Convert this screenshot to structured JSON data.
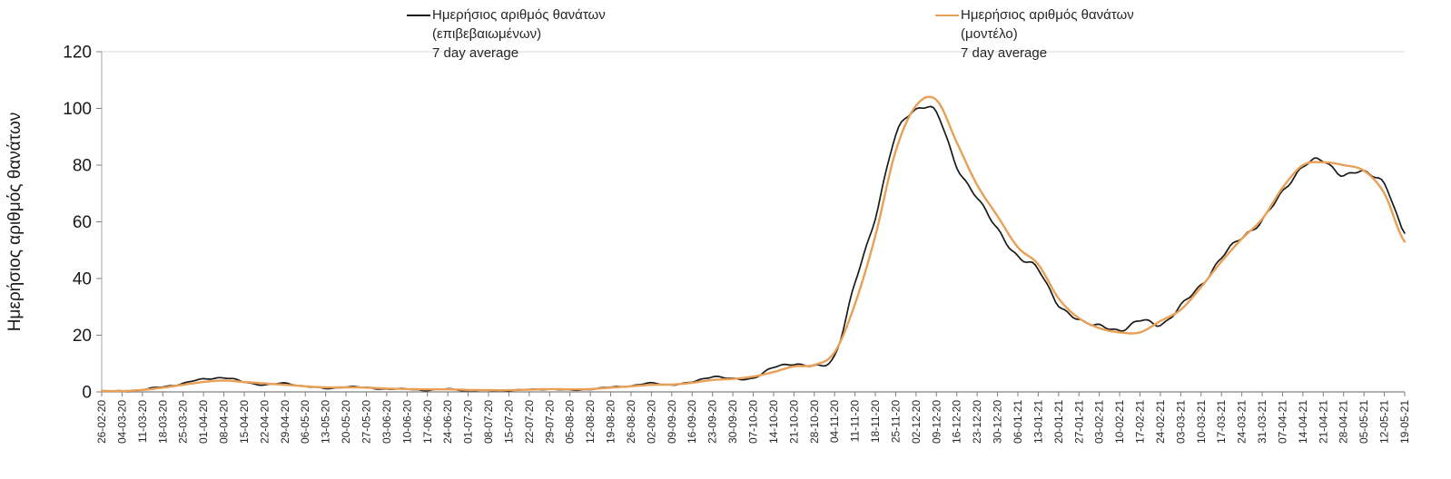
{
  "page": {
    "background": "#ffffff"
  },
  "legend": {
    "items": [
      {
        "lines": [
          "Ημερήσιος αριθμός θανάτων",
          "(επιβεβαιωμένων)",
          "7 day average"
        ]
      },
      {
        "lines": [
          "Ημερήσιος αριθμός θανάτων",
          "(μοντέλο)",
          "7 day average"
        ]
      }
    ]
  },
  "chart_data": {
    "type": "line",
    "title": "",
    "xlabel": "",
    "ylabel": "Ημερήσιος αριθμός θανάτων",
    "ylim": [
      0,
      120
    ],
    "yticks": [
      0,
      20,
      40,
      60,
      80,
      100,
      120
    ],
    "grid": false,
    "legend_position": "top",
    "categories": [
      "26-02-20",
      "04-03-20",
      "11-03-20",
      "18-03-20",
      "25-03-20",
      "01-04-20",
      "08-04-20",
      "15-04-20",
      "22-04-20",
      "29-04-20",
      "06-05-20",
      "13-05-20",
      "20-05-20",
      "27-05-20",
      "03-06-20",
      "10-06-20",
      "17-06-20",
      "24-06-20",
      "01-07-20",
      "08-07-20",
      "15-07-20",
      "22-07-20",
      "29-07-20",
      "05-08-20",
      "12-08-20",
      "19-08-20",
      "26-08-20",
      "02-09-20",
      "09-09-20",
      "16-09-20",
      "23-09-20",
      "30-09-20",
      "07-10-20",
      "14-10-20",
      "21-10-20",
      "28-10-20",
      "04-11-20",
      "11-11-20",
      "18-11-20",
      "25-11-20",
      "02-12-20",
      "09-12-20",
      "16-12-20",
      "23-12-20",
      "30-12-20",
      "06-01-21",
      "13-01-21",
      "20-01-21",
      "27-01-21",
      "03-02-21",
      "10-02-21",
      "17-02-21",
      "24-02-21",
      "03-03-21",
      "10-03-21",
      "17-03-21",
      "24-03-21",
      "31-03-21",
      "07-04-21",
      "14-04-21",
      "21-04-21",
      "28-04-21",
      "05-05-21",
      "12-05-21",
      "19-05-21"
    ],
    "series": [
      {
        "name": "Ημερήσιος αριθμός θανάτων (επιβεβαιωμένων) 7 day average",
        "color": "#1a1a1a",
        "values": [
          0.3,
          0.3,
          0.8,
          1.8,
          3,
          4.5,
          5,
          3.5,
          2.5,
          3,
          2,
          1.2,
          1.8,
          1.5,
          1,
          1,
          0.6,
          1,
          0.5,
          0.5,
          0.5,
          0.8,
          1,
          0.6,
          1,
          1.6,
          2.2,
          3,
          2.6,
          3.4,
          5.5,
          4.5,
          5,
          8.5,
          10,
          9,
          13,
          38,
          62,
          90,
          100,
          98,
          80,
          68,
          58,
          47,
          44,
          30,
          26,
          23,
          22,
          25,
          24,
          30,
          38,
          47,
          55,
          60,
          71,
          79,
          82,
          76,
          78,
          73,
          56
        ]
      },
      {
        "name": "Ημερήσιος αριθμός θανάτων (μοντέλο) 7 day average",
        "color": "#e8a056",
        "values": [
          0.3,
          0.3,
          0.7,
          1.5,
          2.5,
          3.5,
          4,
          3.5,
          3,
          2.5,
          2,
          1.6,
          1.6,
          1.5,
          1.2,
          1,
          0.9,
          0.9,
          0.7,
          0.6,
          0.6,
          0.8,
          1,
          0.9,
          1,
          1.5,
          2,
          2.5,
          2.6,
          3.2,
          4.2,
          4.6,
          5.4,
          7,
          9,
          9.5,
          14,
          31,
          55,
          85,
          101,
          103,
          88,
          73,
          62,
          51,
          45,
          33,
          26,
          22.5,
          21,
          21,
          25,
          29,
          37,
          46,
          54,
          61,
          72,
          80,
          81,
          80,
          78,
          70,
          53
        ]
      }
    ]
  }
}
